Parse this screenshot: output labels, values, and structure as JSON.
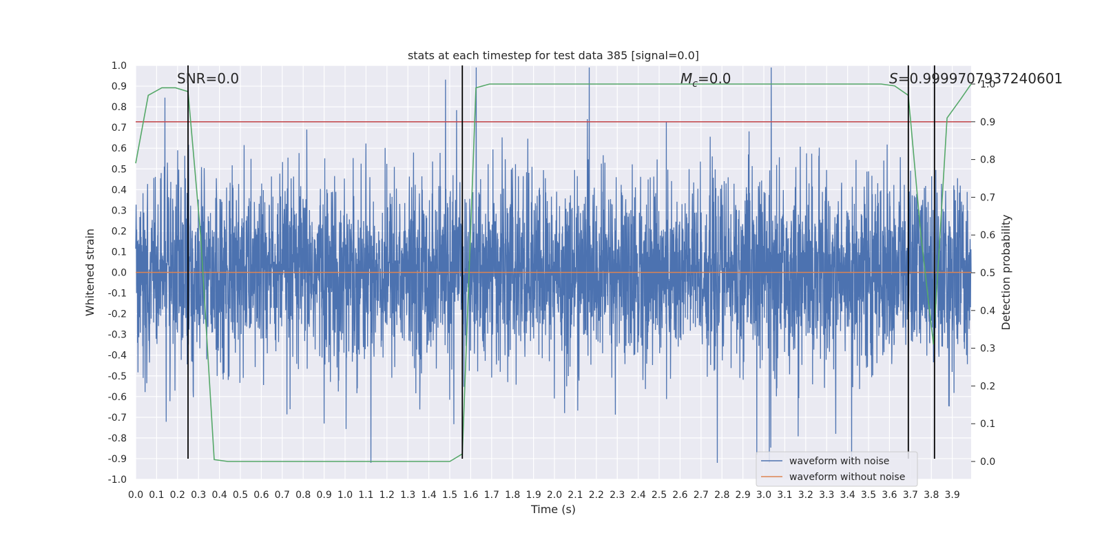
{
  "chart_data": {
    "type": "line",
    "title": "stats at each timestep for test data 385 [signal=0.0]",
    "xlabel": "Time (s)",
    "ylabel": "Whitened strain",
    "y2label": "Detection probability",
    "xlim": [
      0.0,
      3.99
    ],
    "ylim": [
      -1.0,
      1.0
    ],
    "y2lim": [
      -0.05,
      1.0
    ],
    "x_ticks": [
      "0.0",
      "0.1",
      "0.2",
      "0.3",
      "0.4",
      "0.5",
      "0.6",
      "0.7",
      "0.8",
      "0.9",
      "1.0",
      "1.1",
      "1.2",
      "1.3",
      "1.4",
      "1.5",
      "1.6",
      "1.7",
      "1.8",
      "1.9",
      "2.0",
      "2.1",
      "2.2",
      "2.3",
      "2.4",
      "2.5",
      "2.6",
      "2.7",
      "2.8",
      "2.9",
      "3.0",
      "3.1",
      "3.2",
      "3.3",
      "3.4",
      "3.5",
      "3.6",
      "3.7",
      "3.8",
      "3.9"
    ],
    "y_ticks": [
      "1.0",
      "0.9",
      "0.8",
      "0.7",
      "0.6",
      "0.5",
      "0.4",
      "0.3",
      "0.2",
      "0.1",
      "0.0",
      "-0.1",
      "-0.2",
      "-0.3",
      "-0.4",
      "-0.5",
      "-0.6",
      "-0.7",
      "-0.8",
      "-0.9",
      "-1.0"
    ],
    "y2_ticks": [
      "1.0",
      "0.9",
      "0.8",
      "0.7",
      "0.6",
      "0.5",
      "0.4",
      "0.3",
      "0.2",
      "0.1",
      "0.0"
    ],
    "grid": true,
    "annotations": {
      "snr": "SNR=0.0",
      "mc_symbol": "M",
      "mc_sub": "c",
      "mc_value": "=0.0",
      "s_symbol": "S",
      "s_value": "=0.9999707937240601"
    },
    "series": [
      {
        "name": "waveform with noise",
        "color": "#4c72b0",
        "description": "dense whitened noise, mostly within -0.5..0.5 with spikes to about +/-0.9",
        "envelope": {
          "typical_amplitude": 0.45,
          "max_positive": 0.99,
          "max_negative": -0.92
        }
      },
      {
        "name": "waveform without noise",
        "color": "#dd8452",
        "x": [
          0.0,
          3.99
        ],
        "y": [
          0.0,
          0.0
        ]
      },
      {
        "name": "detection probability",
        "axis": "right",
        "color": "#55a868",
        "x": [
          0.0,
          0.06,
          0.125,
          0.19,
          0.25,
          0.31,
          0.375,
          0.44,
          0.5,
          1.0,
          1.5,
          1.56,
          1.625,
          1.69,
          2.0,
          3.0,
          3.56,
          3.625,
          3.69,
          3.75,
          3.81,
          3.875,
          3.94,
          3.99
        ],
        "y": [
          0.79,
          0.97,
          0.99,
          0.99,
          0.98,
          0.6,
          0.005,
          0.0,
          0.0,
          0.0,
          0.0,
          0.02,
          0.99,
          1.0,
          1.0,
          1.0,
          1.0,
          0.995,
          0.97,
          0.6,
          0.31,
          0.91,
          0.96,
          1.0
        ]
      }
    ],
    "threshold_line": {
      "y_right": 0.9,
      "color": "#c44e52"
    },
    "vertical_markers_x": [
      0.25,
      1.56,
      3.69,
      3.815
    ],
    "legend": {
      "placement": "lower right",
      "entries": [
        "waveform with noise",
        "waveform without noise"
      ]
    }
  }
}
